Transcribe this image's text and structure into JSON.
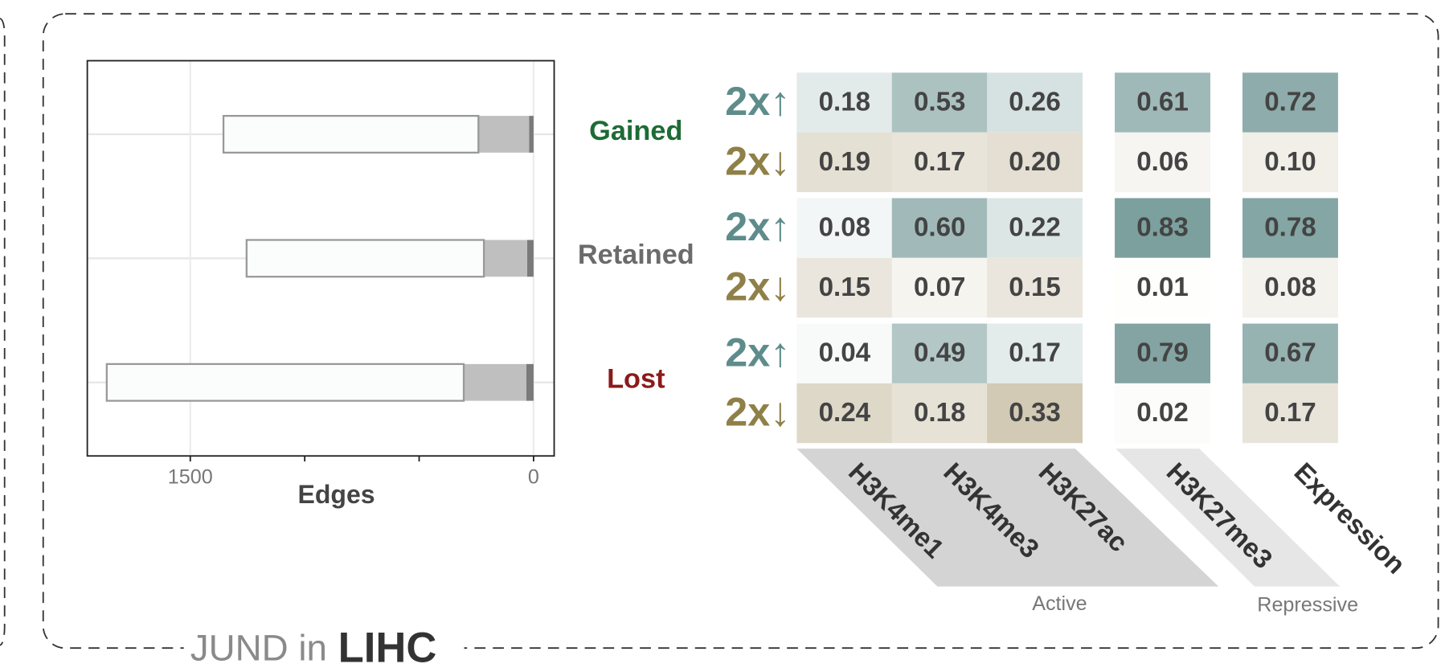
{
  "chart_data": {
    "type": "bar",
    "orientation": "horizontal",
    "categories": [
      "Gained",
      "Retained",
      "Lost"
    ],
    "category_colors": [
      "#1e6b35",
      "#6b6b6b",
      "#8b1a1a"
    ],
    "series": [
      {
        "color": "#7a7a7a",
        "values": [
          20,
          28,
          32
        ]
      },
      {
        "color": "#bfbfbf",
        "values": [
          221,
          189,
          273
        ]
      },
      {
        "color": "#fbfcfc",
        "values": [
          1114,
          1037,
          1560
        ]
      }
    ],
    "xlabel": "Edges",
    "xlim": [
      1950,
      -90
    ],
    "xticks": [
      1500,
      0
    ],
    "xminorticks": [
      1000,
      500
    ],
    "grid": true
  },
  "heatmap": {
    "row_labels": [
      "2x↑",
      "2x↓",
      "2x↑",
      "2x↓",
      "2x↑",
      "2x↓"
    ],
    "columns": [
      "H3K4me1",
      "H3K4me3",
      "H3K27ac",
      "H3K27me3",
      "Expression"
    ],
    "values": [
      [
        0.18,
        0.53,
        0.26,
        0.61,
        0.72
      ],
      [
        0.19,
        0.17,
        0.2,
        0.06,
        0.1
      ],
      [
        0.08,
        0.6,
        0.22,
        0.83,
        0.78
      ],
      [
        0.15,
        0.07,
        0.15,
        0.01,
        0.08
      ],
      [
        0.04,
        0.49,
        0.17,
        0.79,
        0.67
      ],
      [
        0.24,
        0.18,
        0.33,
        0.02,
        0.17
      ]
    ],
    "value_labels": [
      [
        "0.18",
        "0.53",
        "0.26",
        "0.61",
        "0.72"
      ],
      [
        "0.19",
        "0.17",
        "0.20",
        "0.06",
        "0.10"
      ],
      [
        "0.08",
        "0.60",
        "0.22",
        "0.83",
        "0.78"
      ],
      [
        "0.15",
        "0.07",
        "0.15",
        "0.01",
        "0.08"
      ],
      [
        "0.04",
        "0.49",
        "0.17",
        "0.79",
        "0.67"
      ],
      [
        "0.24",
        "0.18",
        "0.33",
        "0.02",
        "0.17"
      ]
    ],
    "groups": [
      "Active",
      "Repressive"
    ]
  },
  "title": {
    "prefix": "JUND in",
    "name": "LIHC"
  }
}
